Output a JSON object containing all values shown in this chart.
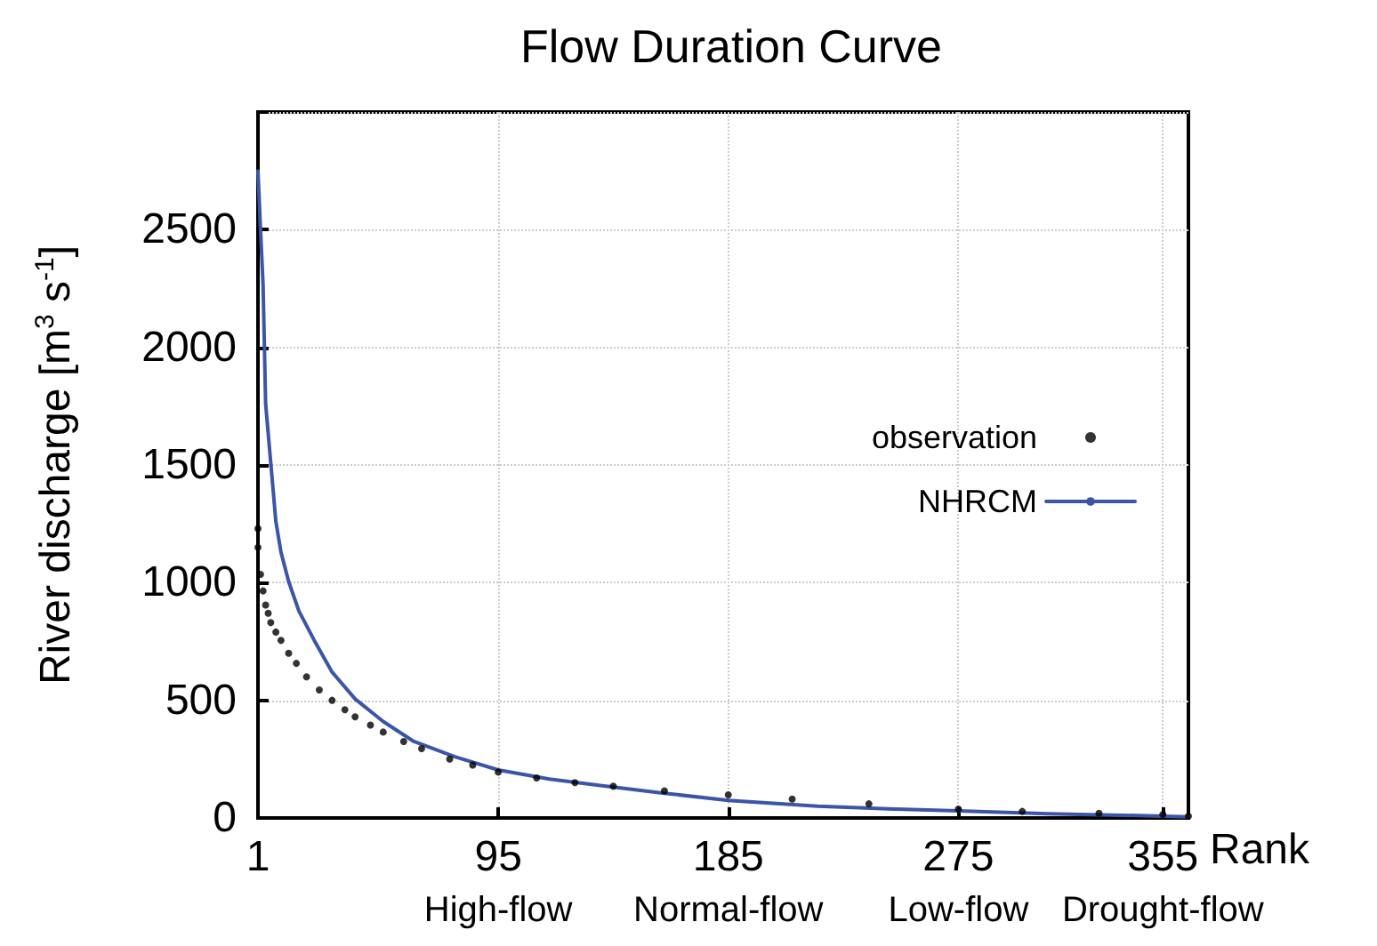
{
  "chart_data": {
    "type": "scatter",
    "title": "Flow Duration Curve",
    "xlabel": "Rank",
    "ylabel": "River discharge [m$^{3}$ s$^{-1}$]",
    "xlim": [
      1,
      365
    ],
    "xticks": [
      1,
      95,
      185,
      275,
      355
    ],
    "ylim": [
      0,
      3000
    ],
    "yticks": [
      0,
      500,
      1000,
      1500,
      2000,
      2500,
      {
        "value": 3000,
        "label": null
      }
    ],
    "grid": true,
    "legend": "right",
    "annotations": [
      "High-flow",
      "Normal-flow",
      "Low-flow",
      "Drought-flow"
    ],
    "series": [
      {
        "name": "observation",
        "marker": "circle",
        "color": "#000000",
        "x": [
          1,
          1,
          2,
          3,
          4,
          5,
          6,
          8,
          10,
          13,
          16,
          20,
          25,
          30,
          35,
          39,
          45,
          50,
          58,
          65,
          76,
          85,
          95,
          110,
          125,
          140,
          160,
          185,
          210,
          240,
          275,
          300,
          330,
          355,
          365
        ],
        "values": [
          1230,
          1150,
          1035,
          965,
          905,
          870,
          830,
          790,
          755,
          700,
          657,
          600,
          544,
          500,
          460,
          430,
          395,
          365,
          325,
          295,
          250,
          225,
          195,
          170,
          150,
          135,
          115,
          98,
          80,
          60,
          38,
          28,
          20,
          15,
          8
        ]
      },
      {
        "name": "NHRCM",
        "type": "line",
        "marker": "none",
        "line_style": "solid",
        "color": "#3b55a8",
        "x": [
          1,
          2,
          3,
          4,
          6,
          8,
          10,
          13,
          17,
          23,
          30,
          39,
          50,
          62,
          78,
          95,
          115,
          135,
          160,
          185,
          220,
          250,
          275,
          310,
          355,
          365
        ],
        "values": [
          2750,
          2500,
          2265,
          1760,
          1510,
          1260,
          1130,
          1005,
          880,
          755,
          620,
          506,
          410,
          325,
          260,
          204,
          165,
          138,
          105,
          75,
          50,
          38,
          30,
          18,
          8,
          5
        ]
      }
    ]
  }
}
